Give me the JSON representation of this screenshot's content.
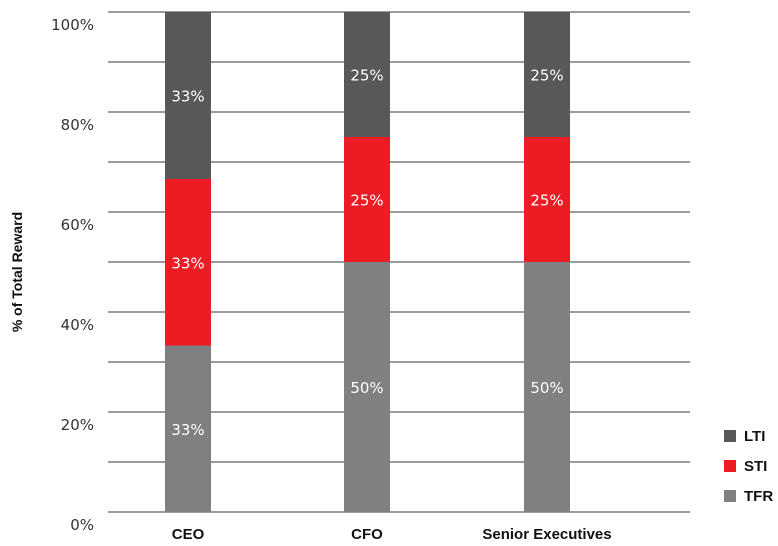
{
  "chart_data": {
    "type": "bar",
    "stacked": true,
    "categories": [
      "CEO",
      "CFO",
      "Senior Executives"
    ],
    "series": [
      {
        "name": "TFR",
        "color": "#808083",
        "values": [
          33.3,
          50,
          50
        ],
        "labels": [
          "33%",
          "50%",
          "50%"
        ]
      },
      {
        "name": "STI",
        "color": "#ed1c24",
        "values": [
          33.3,
          25,
          25
        ],
        "labels": [
          "33%",
          "25%",
          "25%"
        ]
      },
      {
        "name": "LTI",
        "color": "#58585a",
        "values": [
          33.4,
          25,
          25
        ],
        "labels": [
          "33%",
          "25%",
          "25%"
        ]
      }
    ],
    "ylabel": "% of Total Reward",
    "ylim": [
      0,
      100
    ],
    "yticks": [
      0,
      20,
      40,
      60,
      80,
      100
    ],
    "ytick_labels": [
      "0%",
      "20%",
      "40%",
      "60%",
      "80%",
      "100%"
    ],
    "gridlines_every": 10,
    "grid": true,
    "legend": {
      "placement": "bottom-right",
      "order": [
        "LTI",
        "STI",
        "TFR"
      ]
    }
  }
}
